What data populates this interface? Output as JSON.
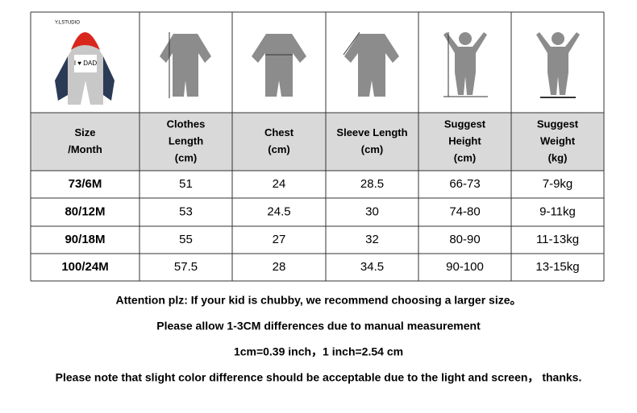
{
  "brand": "Y.LSTUDIO",
  "table": {
    "header": [
      [
        "Size",
        "/Month"
      ],
      [
        "Clothes",
        "Length",
        "(cm)"
      ],
      [
        "Chest",
        "(cm)"
      ],
      [
        "Sleeve Length",
        "(cm)"
      ],
      [
        "Suggest",
        "Height",
        "(cm)"
      ],
      [
        "Suggest",
        "Weight",
        "(kg)"
      ]
    ],
    "rows": [
      [
        "73/6M",
        "51",
        "24",
        "28.5",
        "66-73",
        "7-9kg"
      ],
      [
        "80/12M",
        "53",
        "24.5",
        "30",
        "74-80",
        "9-11kg"
      ],
      [
        "90/18M",
        "55",
        "27",
        "32",
        "80-90",
        "11-13kg"
      ],
      [
        "100/24M",
        "57.5",
        "28",
        "34.5",
        "90-100",
        "13-15kg"
      ]
    ]
  },
  "notes": [
    "Attention plz: If your kid is chubby, we recommend choosing a larger size。",
    "Please allow 1-3CM differences due to manual measurement",
    "1cm=0.39 inch，1 inch=2.54 cm",
    "Please note that slight color difference should be acceptable due to the light and screen，  thanks."
  ]
}
